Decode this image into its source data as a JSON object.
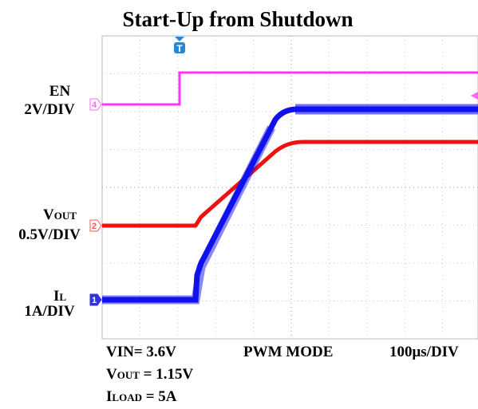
{
  "title": "Start-Up from Shutdown",
  "channels": [
    {
      "name": {
        "main": "EN",
        "sub": ""
      },
      "scale": "2V/DIV",
      "marker": "4"
    },
    {
      "name": {
        "main": "V",
        "sub": "OUT"
      },
      "scale": "0.5V/DIV",
      "marker": "2"
    },
    {
      "name": {
        "main": "I",
        "sub": "L"
      },
      "scale": "1A/DIV",
      "marker": "1"
    }
  ],
  "trigger": "T",
  "footer": {
    "vin": "VIN= 3.6V",
    "mode": "PWM MODE",
    "timebase": "100μs/DIV",
    "vout": {
      "main": "V",
      "sub": "OUT",
      "rest": " = 1.15V"
    },
    "iload": {
      "main": "I",
      "sub": "LOAD",
      "rest": " = 5A"
    }
  }
}
